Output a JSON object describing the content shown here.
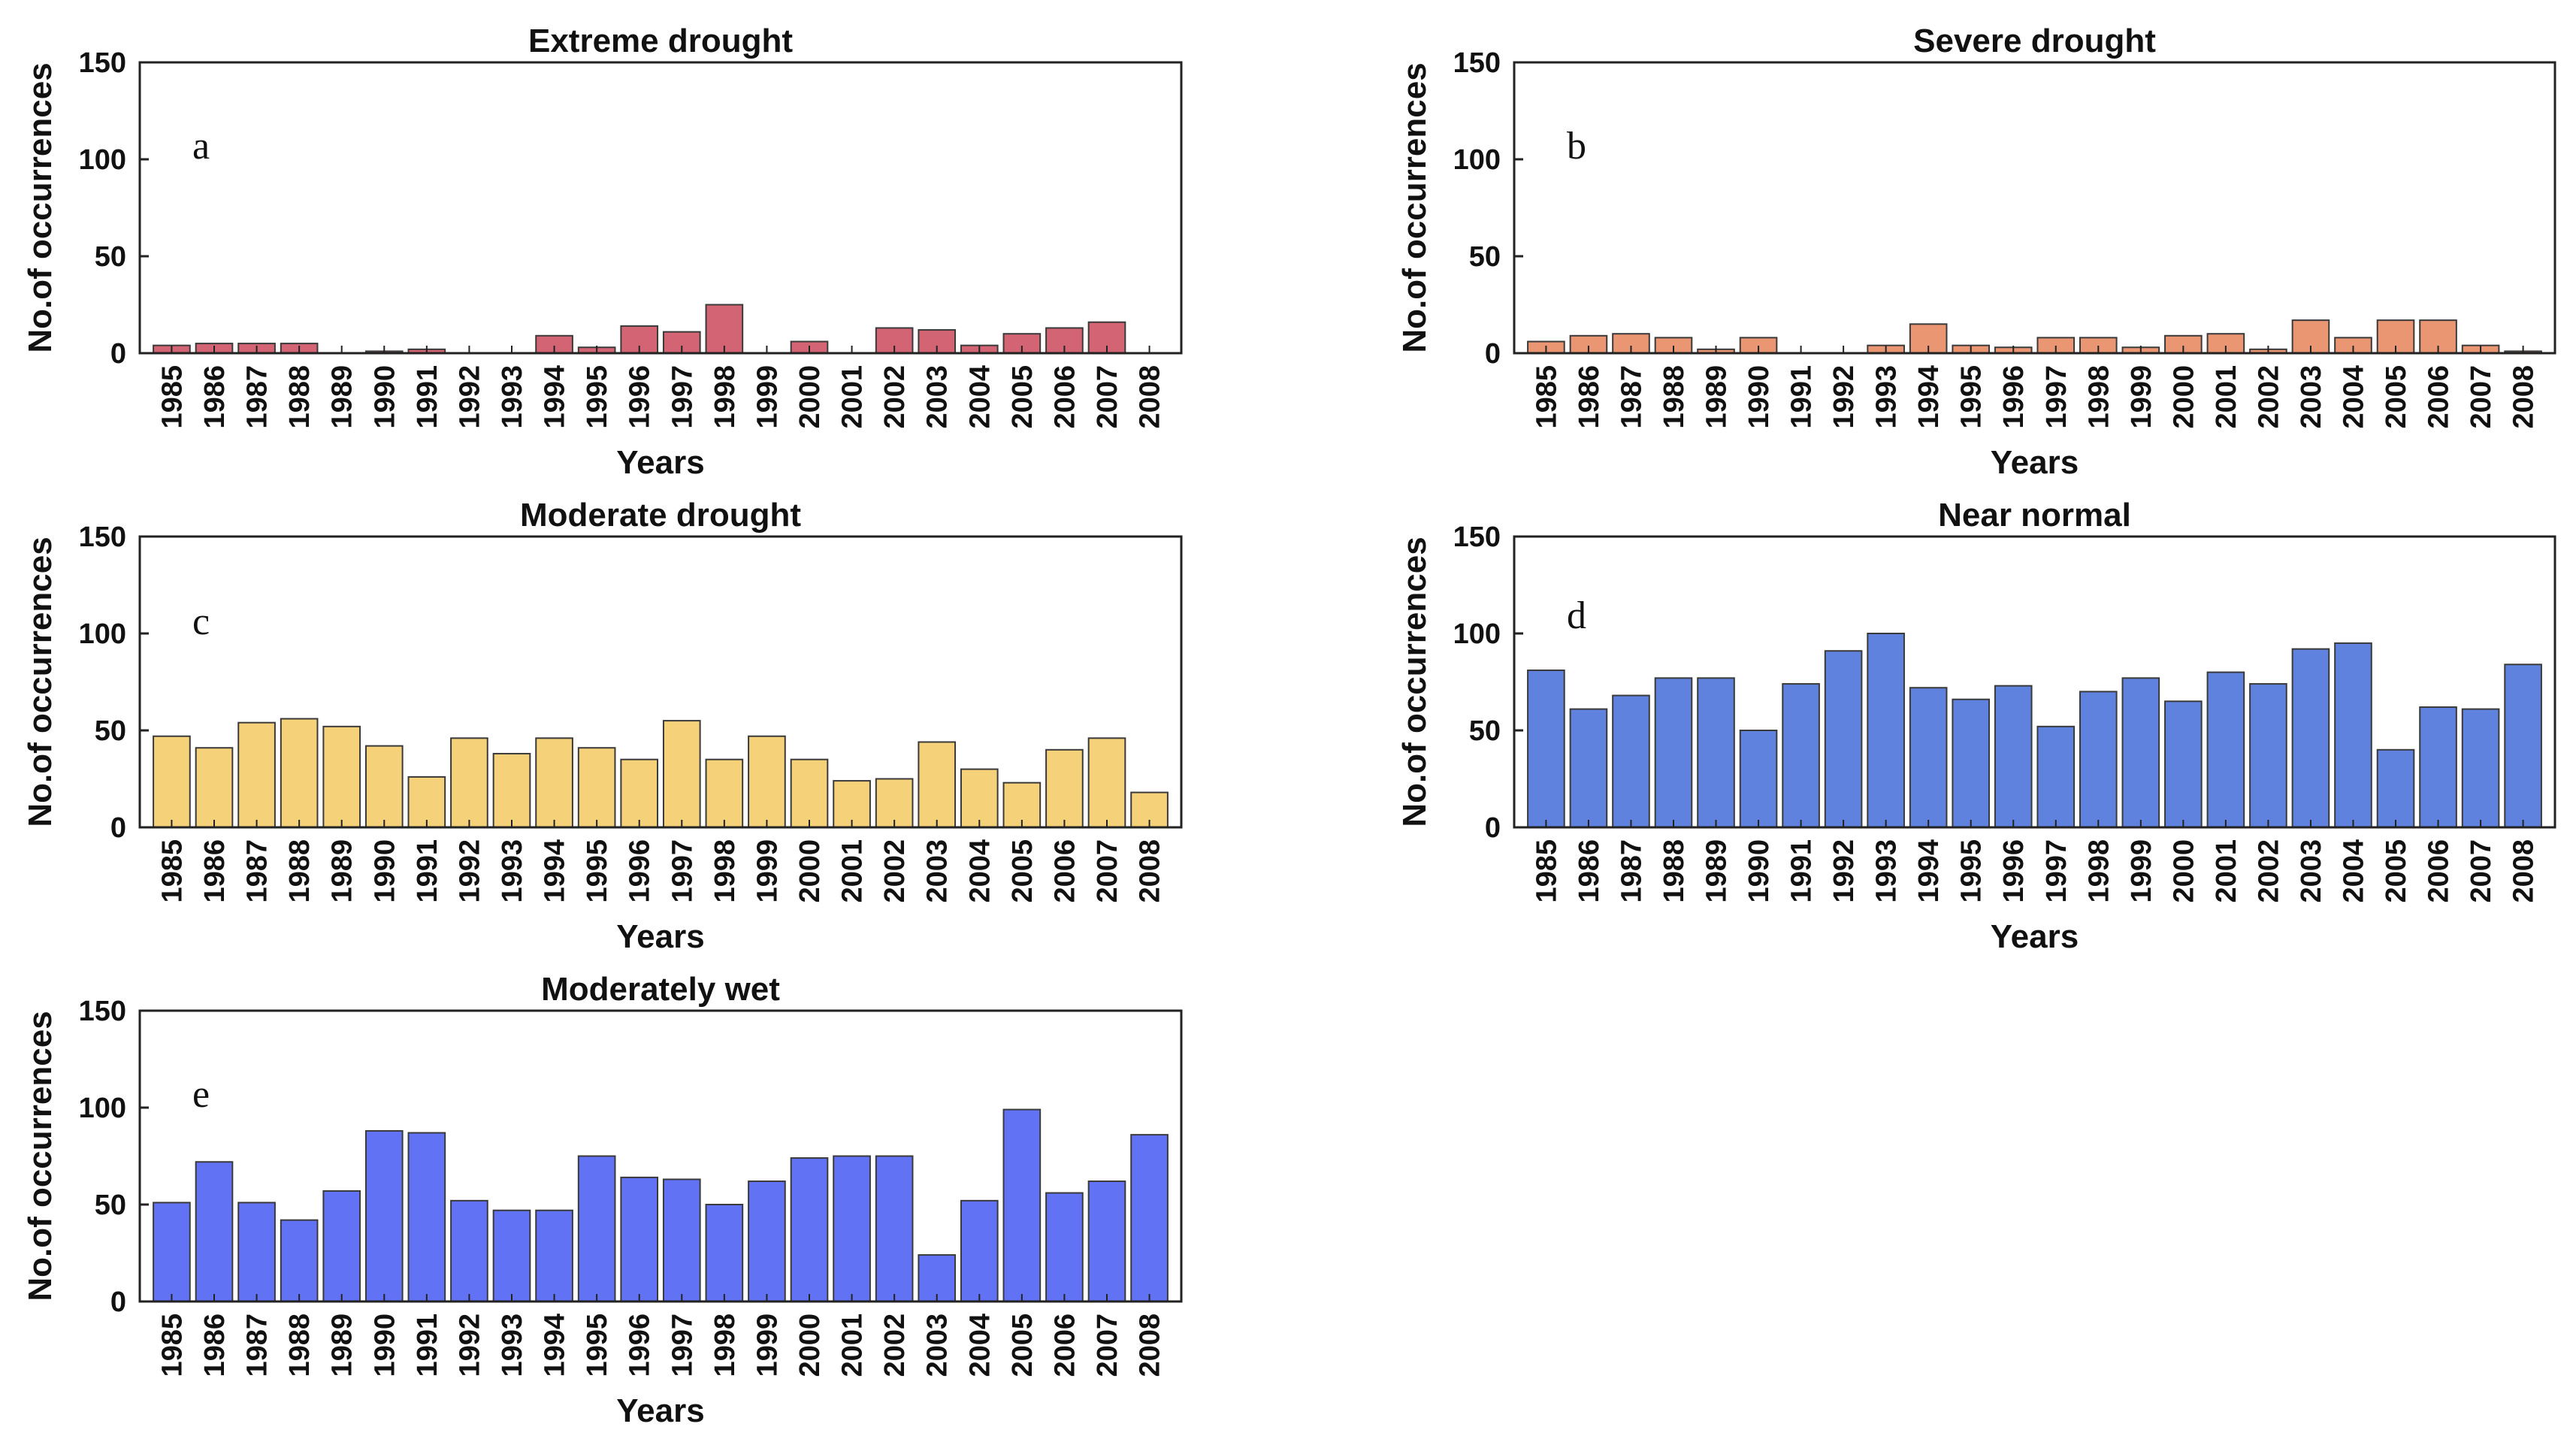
{
  "chart_data": [
    {
      "type": "bar",
      "panel": "a",
      "title": "Extreme drought",
      "xlabel": "Years",
      "ylabel": "No.of occurrences",
      "ylim": [
        0,
        150
      ],
      "yticks": [
        "0",
        "50",
        "100",
        "150"
      ],
      "color": "#d26473",
      "categories": [
        "1985",
        "1986",
        "1987",
        "1988",
        "1989",
        "1990",
        "1991",
        "1992",
        "1993",
        "1994",
        "1995",
        "1996",
        "1997",
        "1998",
        "1999",
        "2000",
        "2001",
        "2002",
        "2003",
        "2004",
        "2005",
        "2006",
        "2007",
        "2008"
      ],
      "values": [
        4,
        5,
        5,
        5,
        0,
        1,
        2,
        0,
        0,
        9,
        3,
        14,
        11,
        25,
        0,
        6,
        0,
        13,
        12,
        4,
        10,
        13,
        16,
        0
      ]
    },
    {
      "type": "bar",
      "panel": "b",
      "title": "Severe drought",
      "xlabel": "Years",
      "ylabel": "No.of occurrences",
      "ylim": [
        0,
        150
      ],
      "yticks": [
        "0",
        "50",
        "100",
        "150"
      ],
      "color": "#eb9673",
      "categories": [
        "1985",
        "1986",
        "1987",
        "1988",
        "1989",
        "1990",
        "1991",
        "1992",
        "1993",
        "1994",
        "1995",
        "1996",
        "1997",
        "1998",
        "1999",
        "2000",
        "2001",
        "2002",
        "2003",
        "2004",
        "2005",
        "2006",
        "2007",
        "2008"
      ],
      "values": [
        6,
        9,
        10,
        8,
        2,
        8,
        0,
        0,
        4,
        15,
        4,
        3,
        8,
        8,
        3,
        9,
        10,
        2,
        17,
        8,
        17,
        17,
        4,
        1
      ]
    },
    {
      "type": "bar",
      "panel": "c",
      "title": "Moderate drought",
      "xlabel": "Years",
      "ylabel": "No.of occurrences",
      "ylim": [
        0,
        150
      ],
      "yticks": [
        "0",
        "50",
        "100",
        "150"
      ],
      "color": "#f5d27a",
      "categories": [
        "1985",
        "1986",
        "1987",
        "1988",
        "1989",
        "1990",
        "1991",
        "1992",
        "1993",
        "1994",
        "1995",
        "1996",
        "1997",
        "1998",
        "1999",
        "2000",
        "2001",
        "2002",
        "2003",
        "2004",
        "2005",
        "2006",
        "2007",
        "2008"
      ],
      "values": [
        47,
        41,
        54,
        56,
        52,
        42,
        26,
        46,
        38,
        46,
        41,
        35,
        55,
        35,
        47,
        35,
        24,
        25,
        44,
        30,
        23,
        40,
        46,
        18
      ]
    },
    {
      "type": "bar",
      "panel": "d",
      "title": "Near normal",
      "xlabel": "Years",
      "ylabel": "No.of occurrences",
      "ylim": [
        0,
        150
      ],
      "yticks": [
        "0",
        "50",
        "100",
        "150"
      ],
      "color": "#5f82df",
      "categories": [
        "1985",
        "1986",
        "1987",
        "1988",
        "1989",
        "1990",
        "1991",
        "1992",
        "1993",
        "1994",
        "1995",
        "1996",
        "1997",
        "1998",
        "1999",
        "2000",
        "2001",
        "2002",
        "2003",
        "2004",
        "2005",
        "2006",
        "2007",
        "2008"
      ],
      "values": [
        81,
        61,
        68,
        77,
        77,
        50,
        74,
        91,
        100,
        72,
        66,
        73,
        52,
        70,
        77,
        65,
        80,
        74,
        92,
        95,
        40,
        62,
        61,
        84
      ]
    },
    {
      "type": "bar",
      "panel": "e",
      "title": "Moderately wet",
      "xlabel": "Years",
      "ylabel": "No.of occurrences",
      "ylim": [
        0,
        150
      ],
      "yticks": [
        "0",
        "50",
        "100",
        "150"
      ],
      "color": "#6272f5",
      "categories": [
        "1985",
        "1986",
        "1987",
        "1988",
        "1989",
        "1990",
        "1991",
        "1992",
        "1993",
        "1994",
        "1995",
        "1996",
        "1997",
        "1998",
        "1999",
        "2000",
        "2001",
        "2002",
        "2003",
        "2004",
        "2005",
        "2006",
        "2007",
        "2008"
      ],
      "values": [
        51,
        72,
        51,
        42,
        57,
        88,
        87,
        52,
        47,
        47,
        75,
        64,
        63,
        50,
        62,
        74,
        75,
        75,
        24,
        52,
        99,
        56,
        62,
        86
      ]
    }
  ]
}
